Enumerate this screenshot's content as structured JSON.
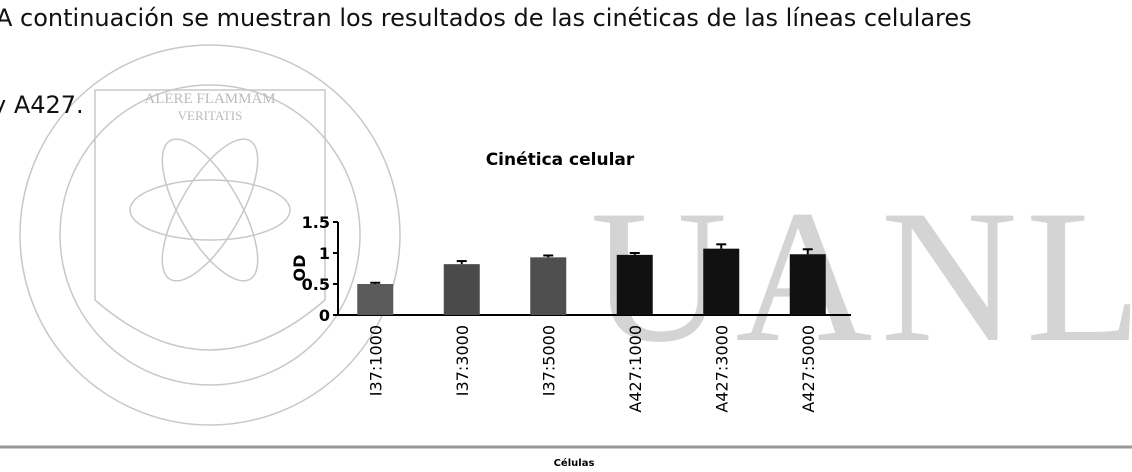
{
  "paragraph": {
    "line1": "A continuación se muestran los resultados de las cinéticas de las líneas celulares",
    "line2": "y A427."
  },
  "watermark": {
    "motto1": "ALERE FLAMMAM",
    "motto2": "VERITATIS",
    "initials": "UANL"
  },
  "chart_data": {
    "type": "bar",
    "title": "Cinética celular",
    "y_label": "OD",
    "x_label": "Células",
    "categories": [
      "I37:1000",
      "I37:3000",
      "I37:5000",
      "A427:1000",
      "A427:3000",
      "A427:5000"
    ],
    "values": [
      0.5,
      0.82,
      0.93,
      0.97,
      1.07,
      0.98
    ],
    "errors": [
      0.02,
      0.05,
      0.03,
      0.03,
      0.07,
      0.08
    ],
    "colors": [
      "#5a5a5a",
      "#4a4a4a",
      "#4f4f4f",
      "#111111",
      "#111111",
      "#111111"
    ],
    "ylim": [
      0,
      1.5
    ],
    "yticks": [
      0,
      0.5,
      1,
      1.5
    ]
  }
}
